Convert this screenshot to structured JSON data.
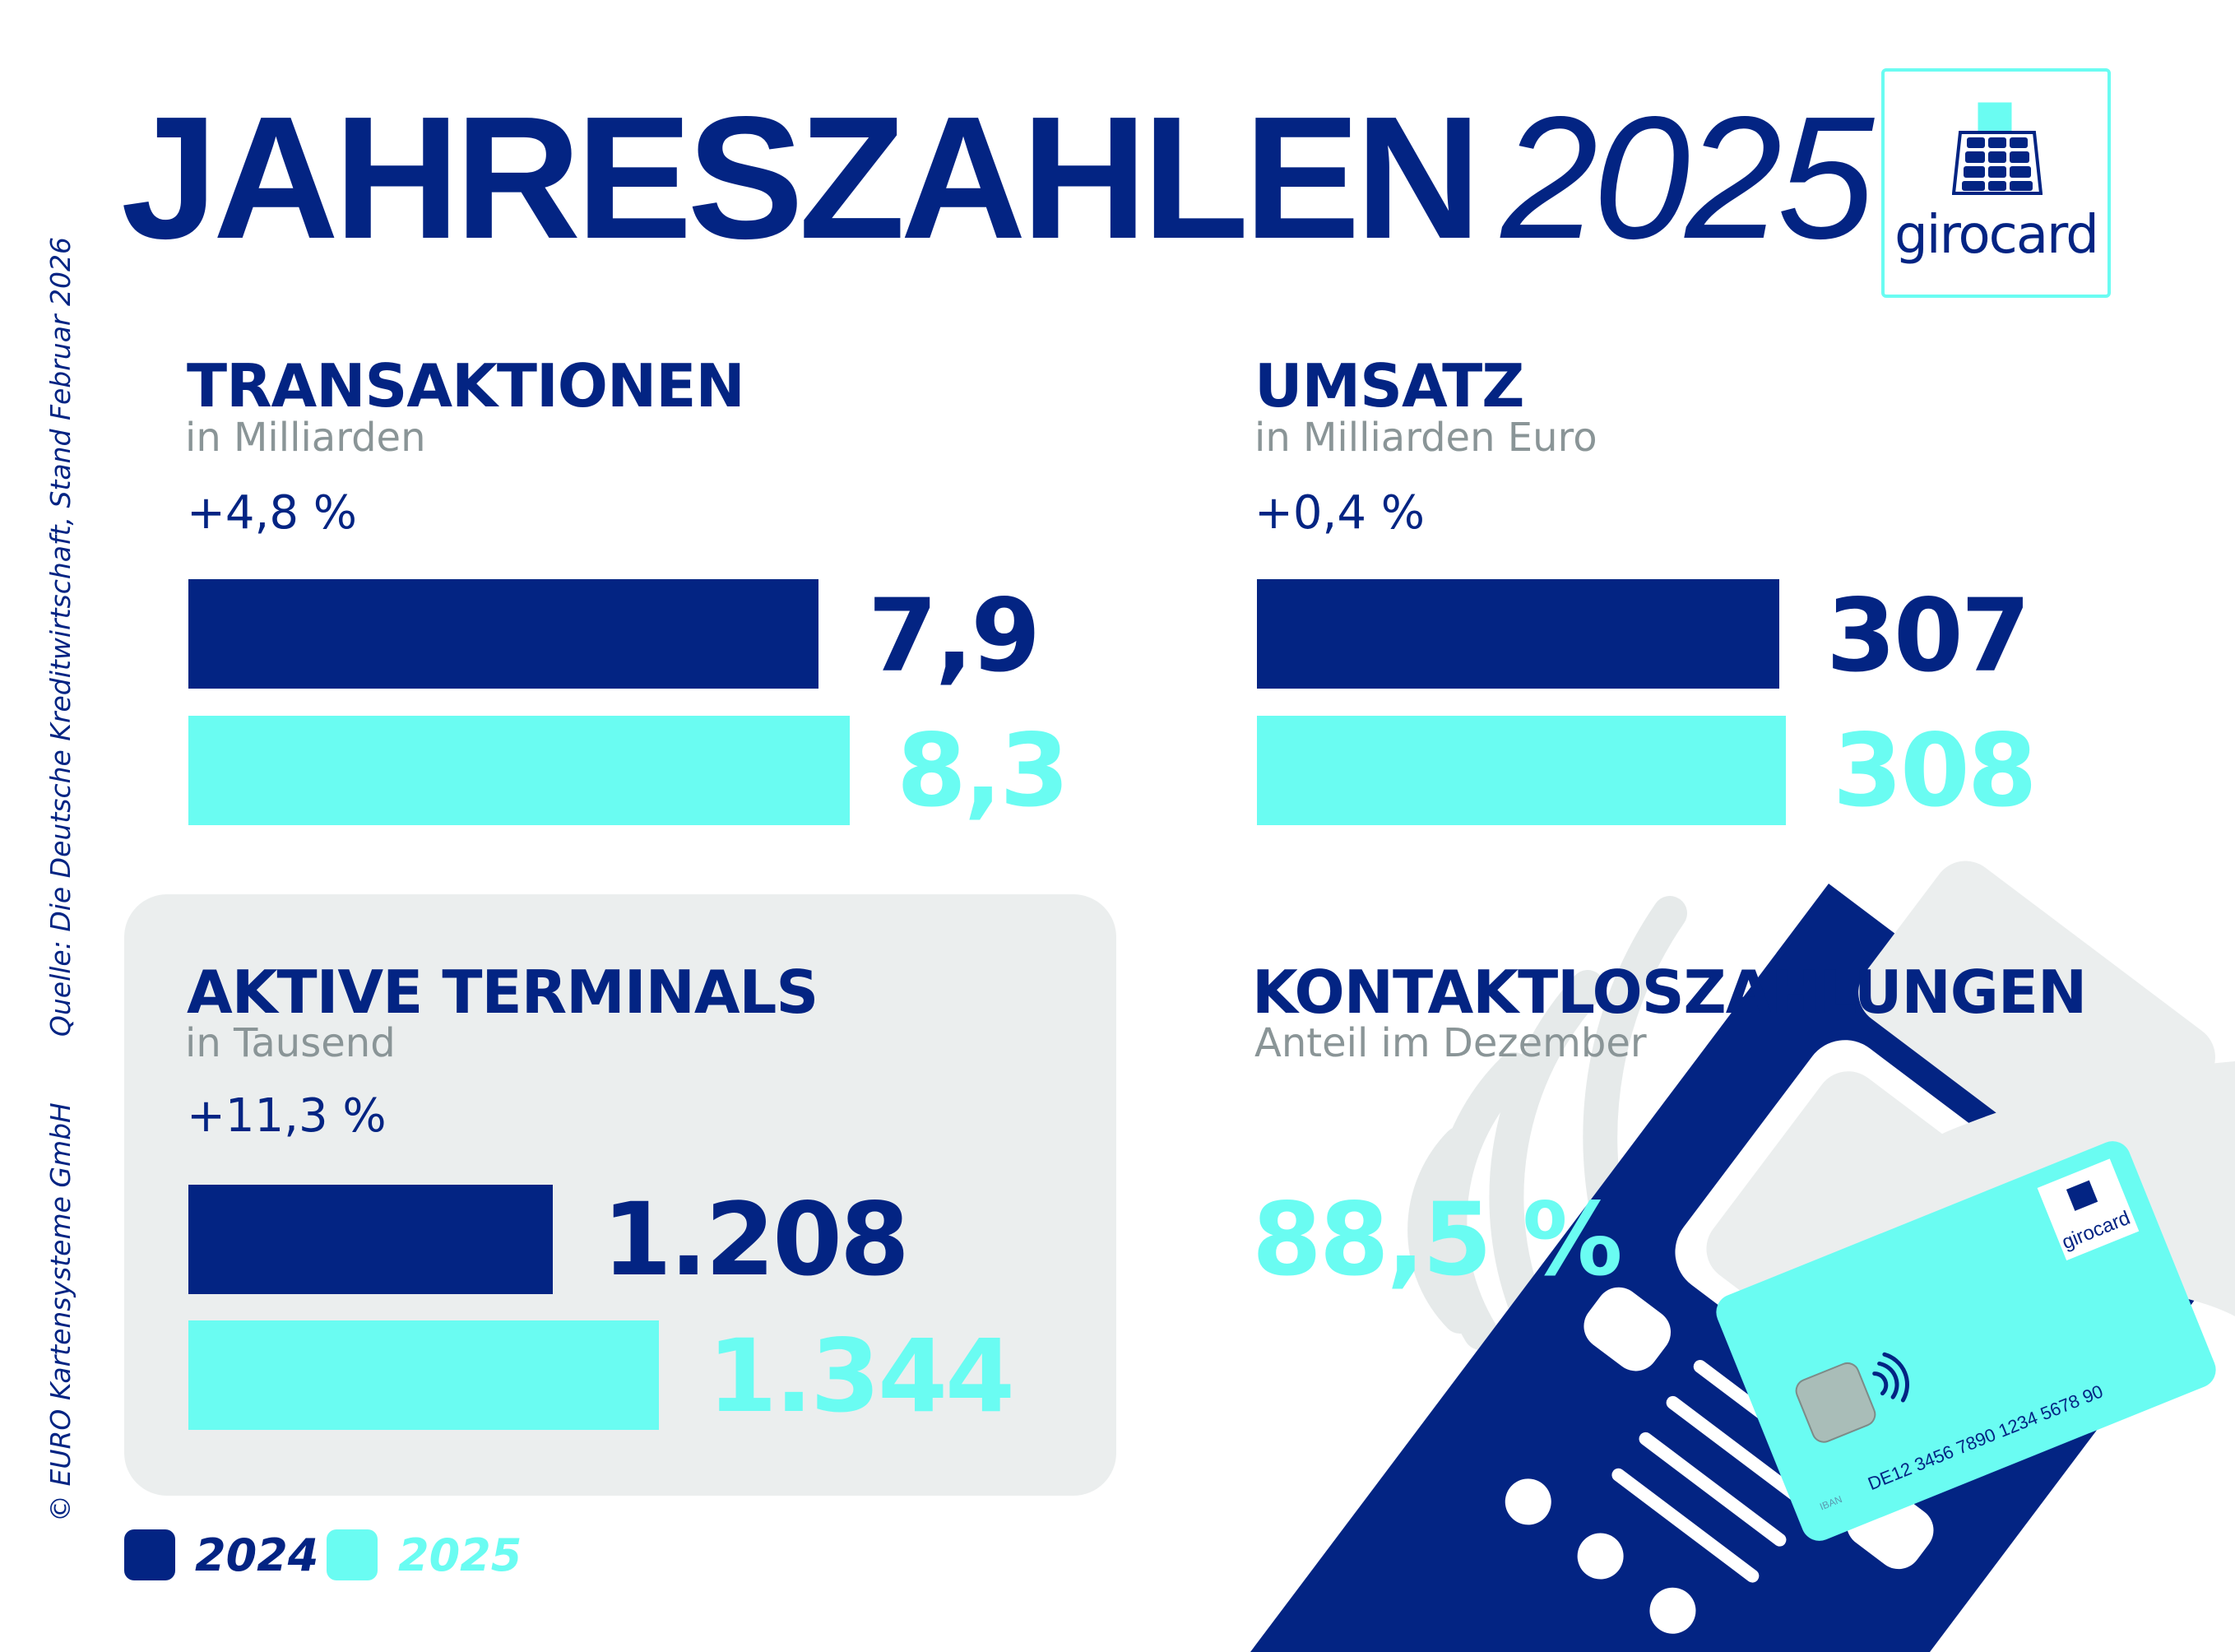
{
  "header": {
    "title": "JAHRESZAHLEN",
    "year": "2025"
  },
  "logo": {
    "text": "girocard"
  },
  "side_notes": {
    "source": "Quelle: Die Deutsche Kreditwirtschaft, Stand Februar 2026",
    "copyright": "© EURO Kartensysteme GmbH"
  },
  "colors": {
    "navy": "#032483",
    "cyan": "#6afcf2",
    "gray": "#ebeeee"
  },
  "sections": {
    "transaktionen": {
      "title": "TRANSAKTIONEN",
      "subtitle": "in Milliarden",
      "change": "+4,8 %",
      "value_2024": "7,9",
      "value_2025": "8,3"
    },
    "umsatz": {
      "title": "UMSATZ",
      "subtitle": "in Milliarden Euro",
      "change": "+0,4 %",
      "value_2024": "307",
      "value_2025": "308"
    },
    "terminals": {
      "title": "AKTIVE TERMINALS",
      "subtitle": "in Tausend",
      "change": "+11,3 %",
      "value_2024": "1.208",
      "value_2025": "1.344"
    },
    "kontaktlos": {
      "title": "KONTAKTLOSZAHLUNGEN",
      "subtitle": "Anteil im Dezember",
      "value": "88,5 %"
    }
  },
  "legend": {
    "y2024": "2024",
    "y2025": "2025"
  },
  "card": {
    "logo": "girocard",
    "iban_label": "IBAN",
    "iban": "DE12 3456 7890 1234 5678 90"
  }
}
